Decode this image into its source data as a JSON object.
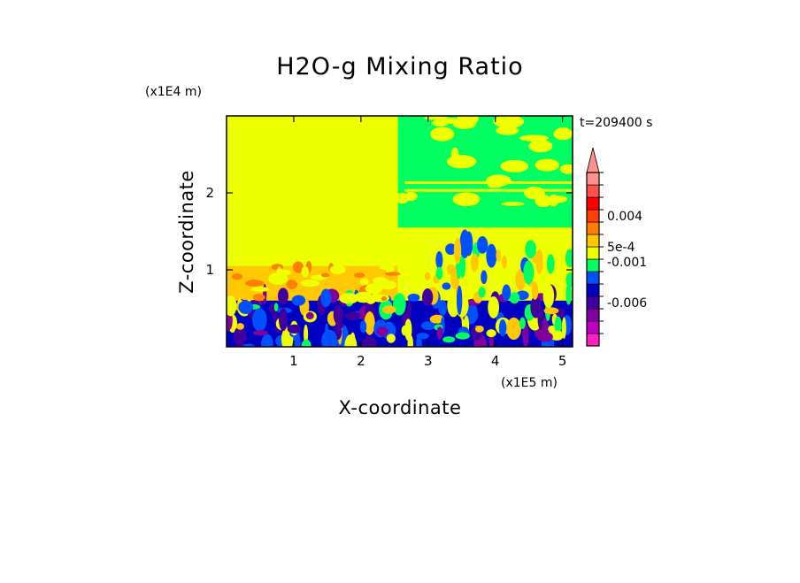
{
  "chart_data": {
    "type": "heatmap",
    "title": "H2O-g Mixing Ratio",
    "xlabel": "X-coordinate",
    "ylabel": "Z-coordinate",
    "x_unit": "(x1E5 m)",
    "y_unit": "(x1E4 m)",
    "time_label": "t=209400 s",
    "xlim": [
      0,
      5.15
    ],
    "ylim": [
      0,
      3.0
    ],
    "x_ticks": [
      1,
      2,
      3,
      4,
      5
    ],
    "y_ticks": [
      1,
      2
    ],
    "colorbar": {
      "colors": [
        "#ff20c0",
        "#c000c0",
        "#8000a0",
        "#4000a0",
        "#0000c0",
        "#0050ff",
        "#00ff60",
        "#eeff00",
        "#ffc800",
        "#ff8000",
        "#ff4000",
        "#ff0000",
        "#ff5050",
        "#ff9090"
      ],
      "extend_color": "#ff9090",
      "labels": [
        "0.004",
        "5e-4",
        "-0.001",
        "-0.006"
      ],
      "label_level_index": [
        10.5,
        8.0,
        6.8,
        3.5
      ]
    },
    "regions": [
      {
        "x0": 0.0,
        "x1": 2.55,
        "y0": 0.6,
        "y1": 3.0,
        "level": 7
      },
      {
        "x0": 0.0,
        "x1": 2.55,
        "y0": 0.6,
        "y1": 1.05,
        "level": 8
      },
      {
        "x0": 2.55,
        "x1": 5.15,
        "y0": 0.0,
        "y1": 3.0,
        "level": 7
      },
      {
        "x0": 2.55,
        "x1": 5.15,
        "y0": 1.55,
        "y1": 3.0,
        "level": 6
      },
      {
        "x0": 0.0,
        "x1": 5.15,
        "y0": 0.0,
        "y1": 0.6,
        "level": 4
      }
    ]
  }
}
